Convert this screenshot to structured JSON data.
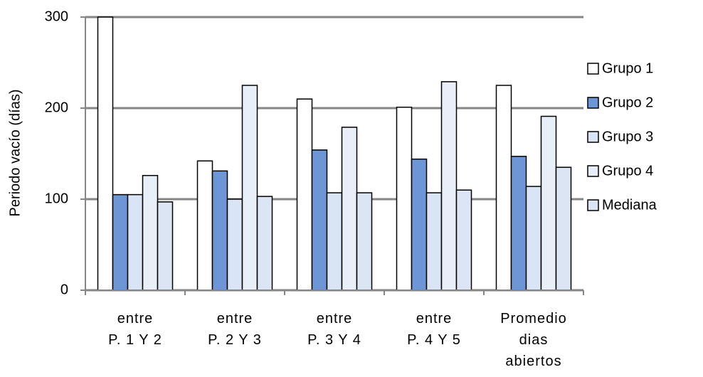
{
  "chart_data": {
    "type": "bar",
    "y_label": "Periodo vacío (días)",
    "categories": [
      "entre\nP. 1 Y 2",
      "entre\nP. 2 Y 3",
      "entre\nP. 3 Y 4",
      "entre\nP. 4 Y 5",
      "Promedio\ndias\nabiertos"
    ],
    "series": [
      {
        "name": "Grupo 1",
        "color": "#ffffff",
        "values": [
          300,
          142,
          210,
          201,
          225
        ]
      },
      {
        "name": "Grupo 2",
        "color": "#6d96d6",
        "values": [
          105,
          131,
          154,
          144,
          147
        ]
      },
      {
        "name": "Grupo 3",
        "color": "#d9e4f4",
        "values": [
          105,
          100,
          107,
          107,
          114
        ]
      },
      {
        "name": "Grupo 4",
        "color": "#e9eff8",
        "values": [
          126,
          225,
          179,
          229,
          191
        ]
      },
      {
        "name": "Mediana",
        "color": "#dbe5f3",
        "values": [
          97,
          103,
          107,
          110,
          135
        ]
      }
    ],
    "ylim": [
      0,
      300
    ],
    "yticks": [
      0,
      100,
      200,
      300
    ],
    "grid": true,
    "legend": "right"
  }
}
